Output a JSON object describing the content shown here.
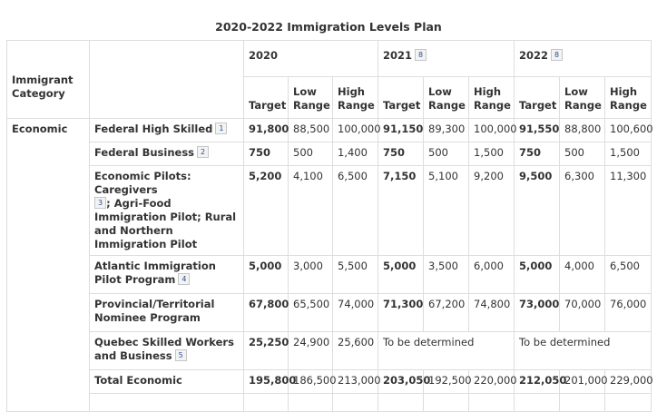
{
  "title": "2020-2022 Immigration Levels Plan",
  "header": {
    "category": "Immigrant Category",
    "years": [
      {
        "label": "2020",
        "fn": ""
      },
      {
        "label": "2021",
        "fn": "8"
      },
      {
        "label": "2022",
        "fn": "8"
      }
    ],
    "target": "Target",
    "low": "Low Range",
    "high": "High Range"
  },
  "category_economic": "Economic",
  "rows": [
    {
      "name": "Federal High Skilled",
      "fn": "1",
      "v": [
        "91,800",
        "88,500",
        "100,000",
        "91,150",
        "89,300",
        "100,000",
        "91,550",
        "88,800",
        "100,600"
      ]
    },
    {
      "name": "Federal Business",
      "fn": "2",
      "v": [
        "750",
        "500",
        "1,400",
        "750",
        "500",
        "1,500",
        "750",
        "500",
        "1,500"
      ]
    },
    {
      "name_a": "Economic Pilots: Caregivers",
      "fn": "3",
      "name_b": "; Agri-Food Immigration Pilot; Rural and Northern Immigration Pilot",
      "v": [
        "5,200",
        "4,100",
        "6,500",
        "7,150",
        "5,100",
        "9,200",
        "9,500",
        "6,300",
        "11,300"
      ]
    },
    {
      "name": "Atlantic Immigration Pilot Program",
      "fn": "4",
      "v": [
        "5,000",
        "3,000",
        "5,500",
        "5,000",
        "3,500",
        "6,000",
        "5,000",
        "4,000",
        "6,500"
      ]
    },
    {
      "name": "Provincial/Territorial Nominee Program",
      "fn": "",
      "v": [
        "67,800",
        "65,500",
        "74,000",
        "71,300",
        "67,200",
        "74,800",
        "73,000",
        "70,000",
        "76,000"
      ]
    },
    {
      "name": "Quebec Skilled Workers and Business",
      "fn": "5",
      "v": [
        "25,250",
        "24,900",
        "25,600"
      ],
      "tbd": "To be determined"
    },
    {
      "name": "Total Economic",
      "fn": "",
      "v": [
        "195,800",
        "186,500",
        "213,000",
        "203,050",
        "192,500",
        "220,000",
        "212,050",
        "201,000",
        "229,000"
      ]
    }
  ]
}
